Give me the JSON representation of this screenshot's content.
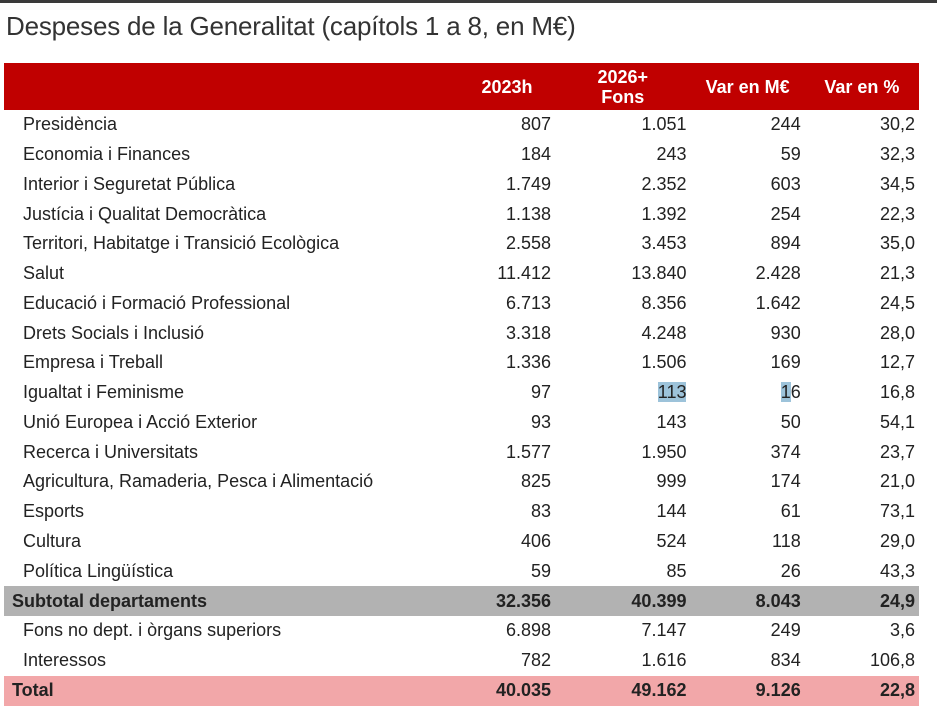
{
  "title": "Despeses de la Generalitat (capítols 1 a 8, en M€)",
  "colors": {
    "header_bg": "#c00000",
    "subtotal_bg": "#b2b2b2",
    "total_bg": "#f2a7a9",
    "selection": "#9dc3da"
  },
  "columns": [
    "",
    "2023h",
    "2026+\nFons",
    "Var en M€",
    "Var en %"
  ],
  "rows": [
    {
      "label": "Presidència",
      "values": [
        "807",
        "1.051",
        "244",
        "30,2"
      ]
    },
    {
      "label": "Economia i Finances",
      "values": [
        "184",
        "243",
        "59",
        "32,3"
      ]
    },
    {
      "label": "Interior i Seguretat Pública",
      "values": [
        "1.749",
        "2.352",
        "603",
        "34,5"
      ]
    },
    {
      "label": "Justícia i Qualitat Democràtica",
      "values": [
        "1.138",
        "1.392",
        "254",
        "22,3"
      ]
    },
    {
      "label": "Territori, Habitatge i Transició Ecològica",
      "values": [
        "2.558",
        "3.453",
        "894",
        "35,0"
      ]
    },
    {
      "label": "Salut",
      "values": [
        "11.412",
        "13.840",
        "2.428",
        "21,3"
      ]
    },
    {
      "label": "Educació i Formació Professional",
      "values": [
        "6.713",
        "8.356",
        "1.642",
        "24,5"
      ]
    },
    {
      "label": "Drets Socials i Inclusió",
      "values": [
        "3.318",
        "4.248",
        "930",
        "28,0"
      ]
    },
    {
      "label": "Empresa i Treball",
      "values": [
        "1.336",
        "1.506",
        "169",
        "12,7"
      ]
    },
    {
      "label": "Igualtat i Feminisme",
      "values": [
        "97",
        "113",
        "16",
        "16,8"
      ]
    },
    {
      "label": "Unió Europea i Acció Exterior",
      "values": [
        "93",
        "143",
        "50",
        "54,1"
      ]
    },
    {
      "label": "Recerca i Universitats",
      "values": [
        "1.577",
        "1.950",
        "374",
        "23,7"
      ]
    },
    {
      "label": "Agricultura, Ramaderia, Pesca i Alimentació",
      "values": [
        "825",
        "999",
        "174",
        "21,0"
      ]
    },
    {
      "label": "Esports",
      "values": [
        "83",
        "144",
        "61",
        "73,1"
      ]
    },
    {
      "label": "Cultura",
      "values": [
        "406",
        "524",
        "118",
        "29,0"
      ]
    },
    {
      "label": "Política Lingüística",
      "values": [
        "59",
        "85",
        "26",
        "43,3"
      ]
    }
  ],
  "subtotal": {
    "label": "Subtotal departaments",
    "values": [
      "32.356",
      "40.399",
      "8.043",
      "24,9"
    ]
  },
  "other_rows": [
    {
      "label": "Fons no dept. i òrgans superiors",
      "values": [
        "6.898",
        "7.147",
        "249",
        "3,6"
      ]
    },
    {
      "label": "Interessos",
      "values": [
        "782",
        "1.616",
        "834",
        "106,8"
      ]
    }
  ],
  "total": {
    "label": "Total",
    "values": [
      "40.035",
      "49.162",
      "9.126",
      "22,8"
    ]
  },
  "text_selection": [
    {
      "row": 9,
      "col": 1,
      "chars": 3
    },
    {
      "row": 9,
      "col": 2,
      "chars": 1
    }
  ]
}
